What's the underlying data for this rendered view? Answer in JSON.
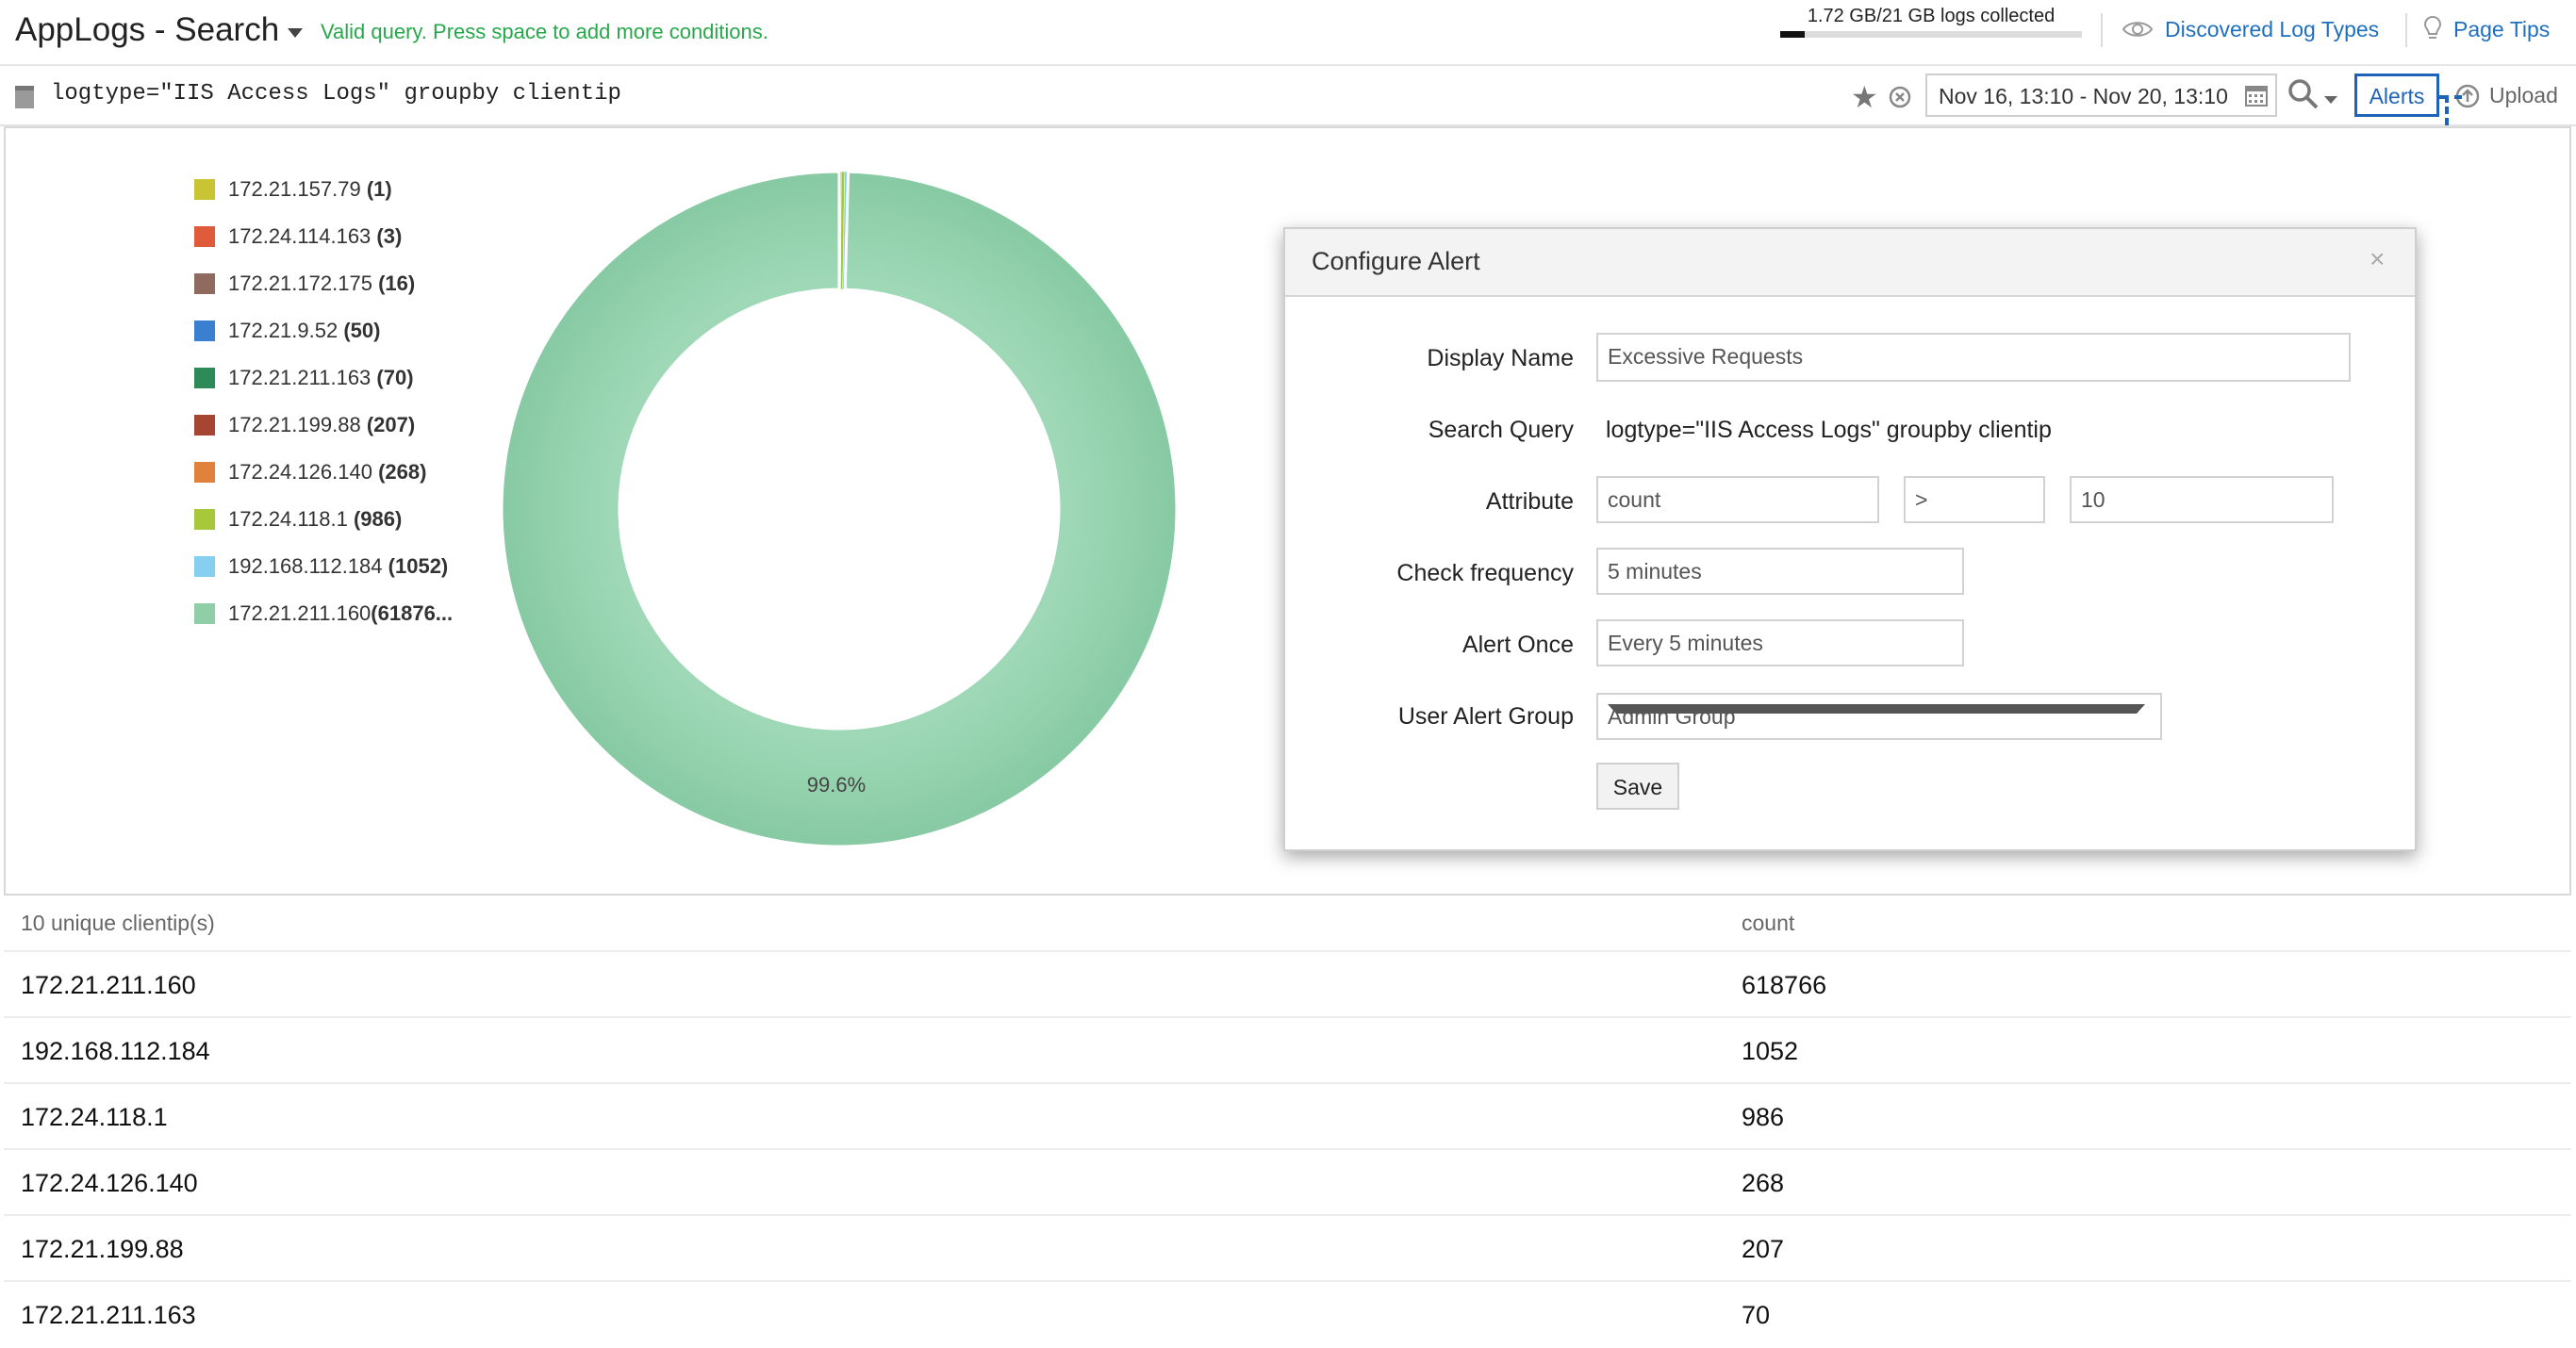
{
  "header": {
    "app_title": "AppLogs - Search",
    "valid_message": "Valid query. Press space to add more conditions.",
    "storage_text": "1.72 GB/21 GB logs collected",
    "storage_fraction": 0.082,
    "discovered_link": "Discovered Log Types",
    "page_tips_link": "Page Tips"
  },
  "query": {
    "text": "logtype=\"IIS Access Logs\" groupby clientip",
    "date_range": "Nov 16, 13:10 - Nov 20, 13:10",
    "alerts_label": "Alerts",
    "upload_label": "Upload"
  },
  "chart_data": {
    "type": "pie",
    "donut": true,
    "categories": [
      "172.21.157.79",
      "172.24.114.163",
      "172.21.172.175",
      "172.21.9.52",
      "172.21.211.163",
      "172.21.199.88",
      "172.24.126.140",
      "172.24.118.1",
      "192.168.112.184",
      "172.21.211.160"
    ],
    "values": [
      1,
      3,
      16,
      50,
      70,
      207,
      268,
      986,
      1052,
      618766
    ],
    "legend_counts": [
      "(1)",
      "(3)",
      "(16)",
      "(50)",
      "(70)",
      "(207)",
      "(268)",
      "(986)",
      "(1052)",
      "(61876..."
    ],
    "colors": [
      "#c8c433",
      "#e05a3c",
      "#8f6a5e",
      "#3a7fd0",
      "#2e8b57",
      "#a64632",
      "#e0823c",
      "#a7c83a",
      "#86cff0",
      "#8fcea6"
    ],
    "slice_label": "99.6%",
    "legend_position": "left"
  },
  "modal": {
    "title": "Configure Alert",
    "close_glyph": "×",
    "display_name_label": "Display Name",
    "display_name_value": "Excessive Requests",
    "search_query_label": "Search Query",
    "search_query_value": "logtype=\"IIS Access Logs\" groupby clientip",
    "attribute_label": "Attribute",
    "attribute_field": "count",
    "attribute_operator": ">",
    "attribute_value": "10",
    "check_frequency_label": "Check frequency",
    "check_frequency_value": "5 minutes",
    "alert_once_label": "Alert Once",
    "alert_once_value": "Every 5 minutes",
    "user_alert_group_label": "User Alert Group",
    "user_alert_group_value": "Admin Group",
    "save_label": "Save"
  },
  "table": {
    "col1_header": "10 unique clientip(s)",
    "col2_header": "count",
    "rows": [
      {
        "ip": "172.21.211.160",
        "count": "618766"
      },
      {
        "ip": "192.168.112.184",
        "count": "1052"
      },
      {
        "ip": "172.24.118.1",
        "count": "986"
      },
      {
        "ip": "172.24.126.140",
        "count": "268"
      },
      {
        "ip": "172.21.199.88",
        "count": "207"
      },
      {
        "ip": "172.21.211.163",
        "count": "70"
      }
    ]
  }
}
